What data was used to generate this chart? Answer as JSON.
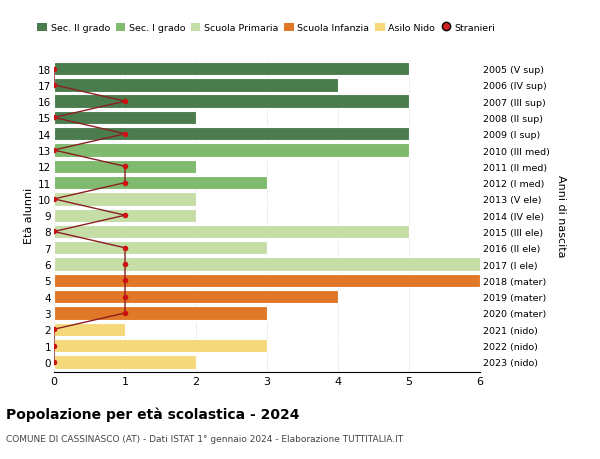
{
  "ages": [
    18,
    17,
    16,
    15,
    14,
    13,
    12,
    11,
    10,
    9,
    8,
    7,
    6,
    5,
    4,
    3,
    2,
    1,
    0
  ],
  "right_labels": [
    "2005 (V sup)",
    "2006 (IV sup)",
    "2007 (III sup)",
    "2008 (II sup)",
    "2009 (I sup)",
    "2010 (III med)",
    "2011 (II med)",
    "2012 (I med)",
    "2013 (V ele)",
    "2014 (IV ele)",
    "2015 (III ele)",
    "2016 (II ele)",
    "2017 (I ele)",
    "2018 (mater)",
    "2019 (mater)",
    "2020 (mater)",
    "2021 (nido)",
    "2022 (nido)",
    "2023 (nido)"
  ],
  "bar_values": [
    5,
    4,
    5,
    2,
    5,
    5,
    2,
    3,
    2,
    2,
    5,
    3,
    6,
    6,
    4,
    3,
    1,
    3,
    2
  ],
  "bar_colors": [
    "#4a7c4e",
    "#4a7c4e",
    "#4a7c4e",
    "#4a7c4e",
    "#4a7c4e",
    "#7fba6e",
    "#7fba6e",
    "#7fba6e",
    "#c5dea8",
    "#c5dea8",
    "#c5dea8",
    "#c5dea8",
    "#c5dea8",
    "#e07828",
    "#e07828",
    "#e07828",
    "#f5d87a",
    "#f5d87a",
    "#f5d87a"
  ],
  "stranieri_x": [
    0,
    0,
    1,
    0,
    1,
    0,
    1,
    1,
    0,
    1,
    0,
    1,
    1,
    1,
    1,
    1,
    0,
    0,
    0
  ],
  "legend_labels": [
    "Sec. II grado",
    "Sec. I grado",
    "Scuola Primaria",
    "Scuola Infanzia",
    "Asilo Nido",
    "Stranieri"
  ],
  "legend_colors": [
    "#4a7c4e",
    "#7fba6e",
    "#c5dea8",
    "#e07828",
    "#f5d87a",
    "#cc2222"
  ],
  "title": "Popolazione per età scolastica - 2024",
  "subtitle": "COMUNE DI CASSINASCO (AT) - Dati ISTAT 1° gennaio 2024 - Elaborazione TUTTITALIA.IT",
  "ylabel_left": "Età alunni",
  "ylabel_right": "Anni di nascita",
  "xlim": [
    0,
    6
  ],
  "bar_height": 0.82,
  "bg_color": "#ffffff",
  "grid_color": "#dddddd",
  "stranieri_line_color": "#8b2020",
  "stranieri_dot_color": "#cc1111"
}
